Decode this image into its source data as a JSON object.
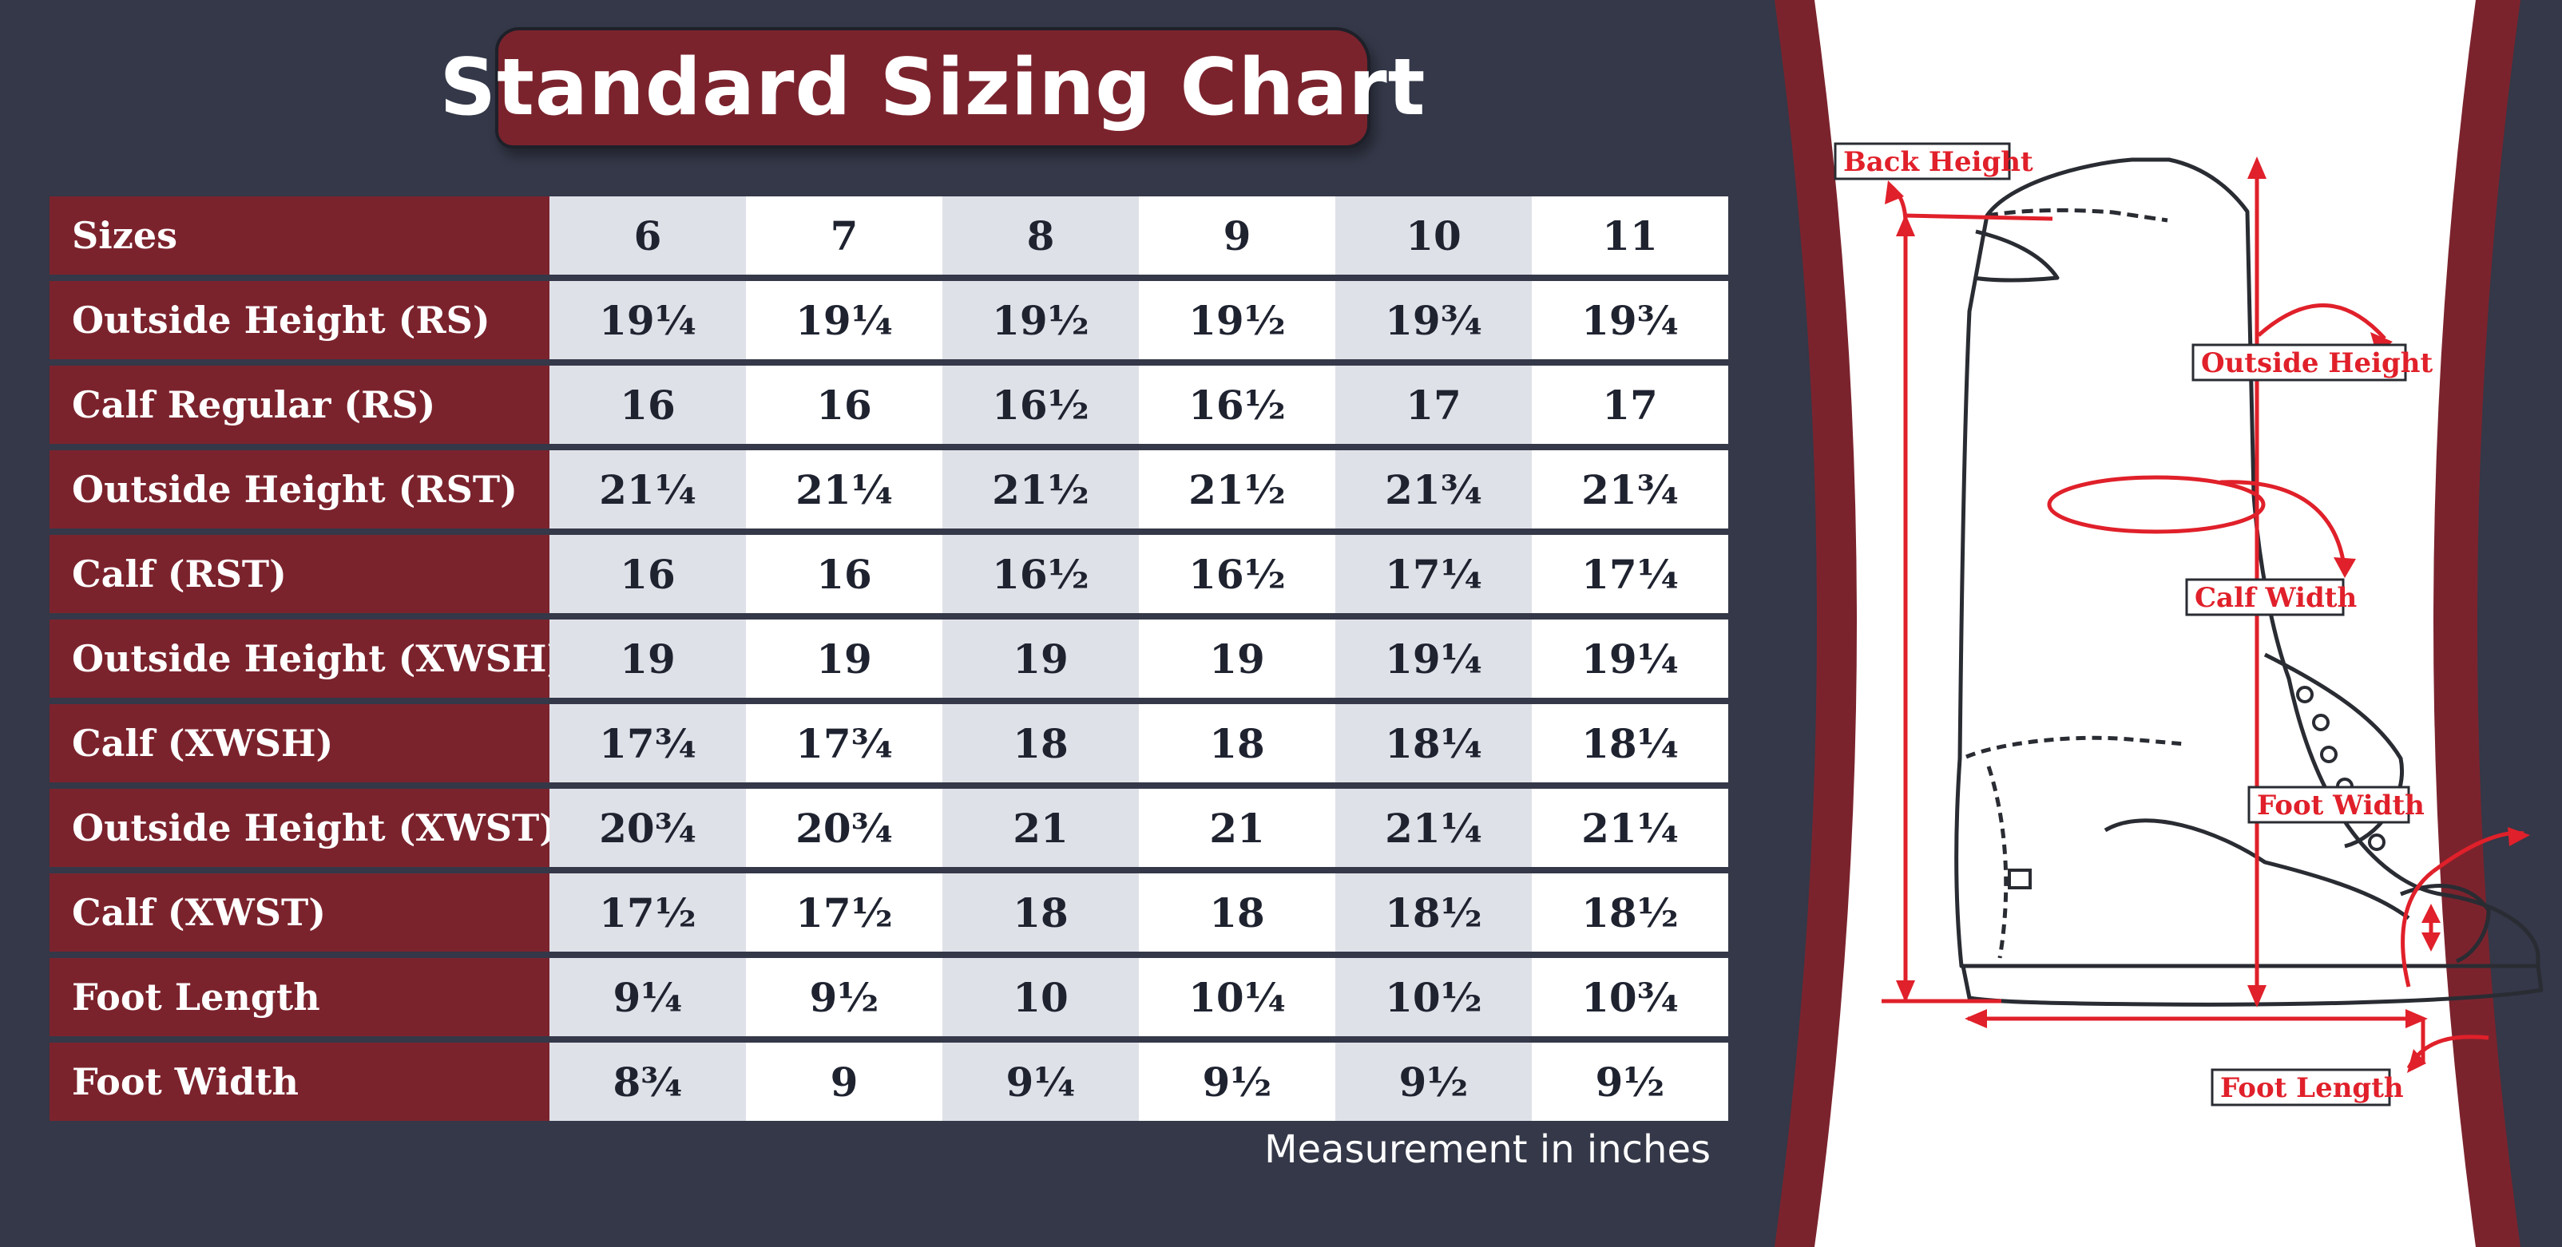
{
  "title": "Standard Sizing Chart",
  "footnote": "Measurement in inches",
  "chart_data": {
    "type": "table",
    "header": {
      "label": "Sizes",
      "values": [
        "6",
        "7",
        "8",
        "9",
        "10",
        "11"
      ]
    },
    "rows": [
      {
        "label": "Outside Height (RS)",
        "values": [
          "19¼",
          "19¼",
          "19½",
          "19½",
          "19¾",
          "19¾"
        ]
      },
      {
        "label": "Calf Regular (RS)",
        "values": [
          "16",
          "16",
          "16½",
          "16½",
          "17",
          "17"
        ]
      },
      {
        "label": "Outside Height (RST)",
        "values": [
          "21¼",
          "21¼",
          "21½",
          "21½",
          "21¾",
          "21¾"
        ]
      },
      {
        "label": "Calf (RST)",
        "values": [
          "16",
          "16",
          "16½",
          "16½",
          "17¼",
          "17¼"
        ]
      },
      {
        "label": "Outside Height (XWSH)",
        "values": [
          "19",
          "19",
          "19",
          "19",
          "19¼",
          "19¼"
        ]
      },
      {
        "label": "Calf (XWSH)",
        "values": [
          "17¾",
          "17¾",
          "18",
          "18",
          "18¼",
          "18¼"
        ]
      },
      {
        "label": "Outside Height (XWST)",
        "values": [
          "20¾",
          "20¾",
          "21",
          "21",
          "21¼",
          "21¼"
        ]
      },
      {
        "label": "Calf (XWST)",
        "values": [
          "17½",
          "17½",
          "18",
          "18",
          "18½",
          "18½"
        ]
      },
      {
        "label": "Foot Length",
        "values": [
          "9¼",
          "9½",
          "10",
          "10¼",
          "10½",
          "10¾"
        ]
      },
      {
        "label": "Foot Width",
        "values": [
          "8¾",
          "9",
          "9¼",
          "9½",
          "9½",
          "9½"
        ]
      }
    ]
  },
  "diagram": {
    "callouts": {
      "back_height": "Back Height",
      "outside_height": "Outside Height",
      "calf_width": "Calf Width",
      "foot_width": "Foot Width",
      "foot_length": "Foot Length"
    }
  },
  "colors": {
    "background": "#343848",
    "accent": "#7b232d",
    "annotation": "#e0202a",
    "cell_shade": "#dfe1e8",
    "cell_plain": "#ffffff"
  }
}
